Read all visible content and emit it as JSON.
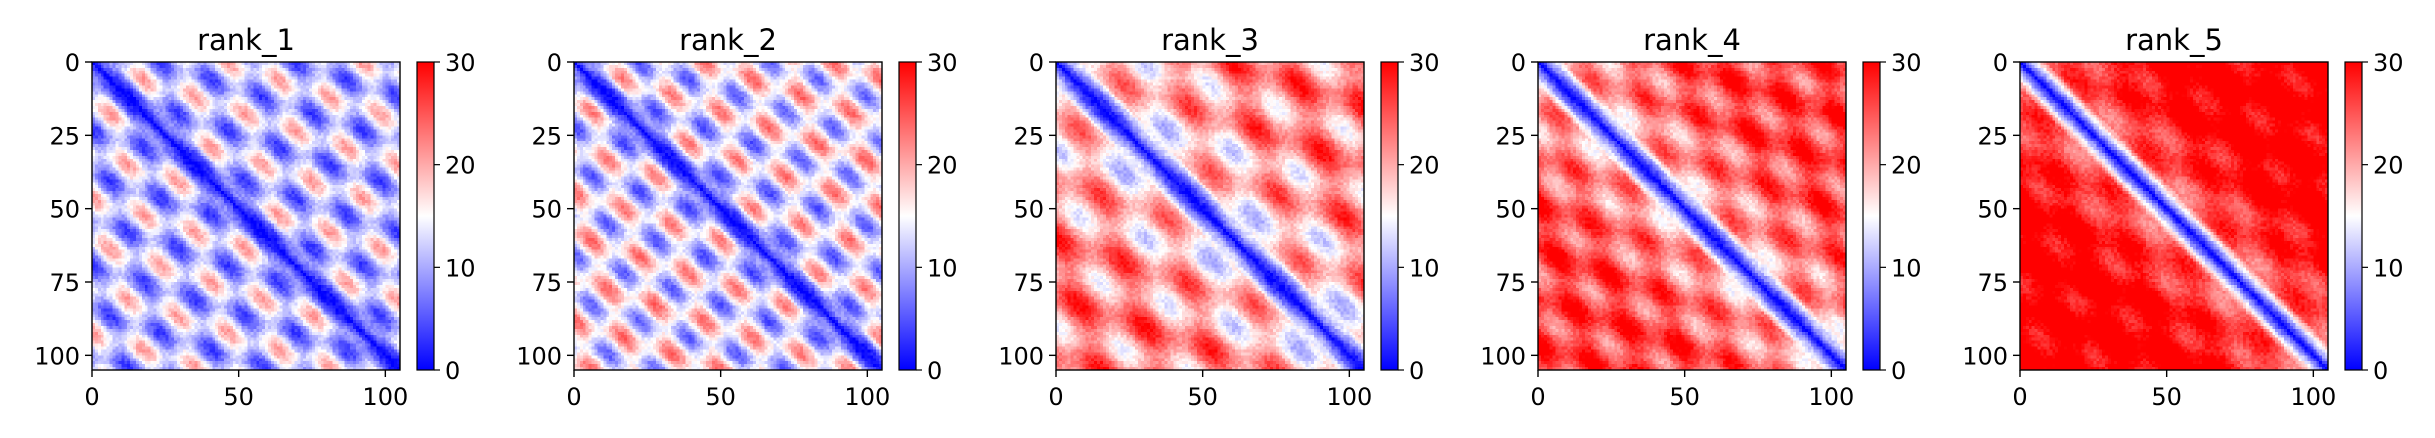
{
  "chart_data": [
    {
      "type": "heatmap",
      "title": "rank_1",
      "xticks": [
        0,
        50,
        100
      ],
      "yticks": [
        0,
        25,
        50,
        75,
        100
      ],
      "xlim": [
        0,
        105
      ],
      "ylim": [
        105,
        0
      ],
      "colorbar": {
        "range": [
          0,
          30
        ],
        "ticks": [
          0,
          10,
          20,
          30
        ],
        "colormap": "bwr"
      },
      "pattern": {
        "diag_band": 8,
        "off_period": 23,
        "off_amp": 9.0,
        "base": 12,
        "far_red": 0,
        "far_scale": 60
      }
    },
    {
      "type": "heatmap",
      "title": "rank_2",
      "xticks": [
        0,
        50,
        100
      ],
      "yticks": [
        0,
        25,
        50,
        75,
        100
      ],
      "xlim": [
        0,
        105
      ],
      "ylim": [
        105,
        0
      ],
      "colorbar": {
        "range": [
          0,
          30
        ],
        "ticks": [
          0,
          10,
          20,
          30
        ],
        "colormap": "bwr"
      },
      "pattern": {
        "diag_band": 8,
        "off_period": 22,
        "off_amp": 9.5,
        "base": 13,
        "far_red": 2,
        "far_scale": 60
      }
    },
    {
      "type": "heatmap",
      "title": "rank_3",
      "xticks": [
        0,
        50,
        100
      ],
      "yticks": [
        0,
        25,
        50,
        75,
        100
      ],
      "xlim": [
        0,
        105
      ],
      "ylim": [
        105,
        0
      ],
      "colorbar": {
        "range": [
          0,
          30
        ],
        "ticks": [
          0,
          10,
          20,
          30
        ],
        "colormap": "bwr"
      },
      "pattern": {
        "diag_band": 9,
        "off_period": 30,
        "off_amp": 8.0,
        "base": 16,
        "far_red": 6,
        "far_scale": 55
      }
    },
    {
      "type": "heatmap",
      "title": "rank_4",
      "xticks": [
        0,
        50,
        100
      ],
      "yticks": [
        0,
        25,
        50,
        75,
        100
      ],
      "xlim": [
        0,
        105
      ],
      "ylim": [
        105,
        0
      ],
      "colorbar": {
        "range": [
          0,
          30
        ],
        "ticks": [
          0,
          10,
          20,
          30
        ],
        "colormap": "bwr"
      },
      "pattern": {
        "diag_band": 9,
        "off_period": 24,
        "off_amp": 6.0,
        "base": 19,
        "far_red": 7,
        "far_scale": 50
      }
    },
    {
      "type": "heatmap",
      "title": "rank_5",
      "xticks": [
        0,
        50,
        100
      ],
      "yticks": [
        0,
        25,
        50,
        75,
        100
      ],
      "xlim": [
        0,
        105
      ],
      "ylim": [
        105,
        0
      ],
      "colorbar": {
        "range": [
          0,
          30
        ],
        "ticks": [
          0,
          10,
          20,
          30
        ],
        "colormap": "bwr"
      },
      "pattern": {
        "diag_band": 9,
        "off_period": 25,
        "off_amp": 4.0,
        "base": 23,
        "far_red": 8,
        "far_scale": 45
      }
    }
  ]
}
